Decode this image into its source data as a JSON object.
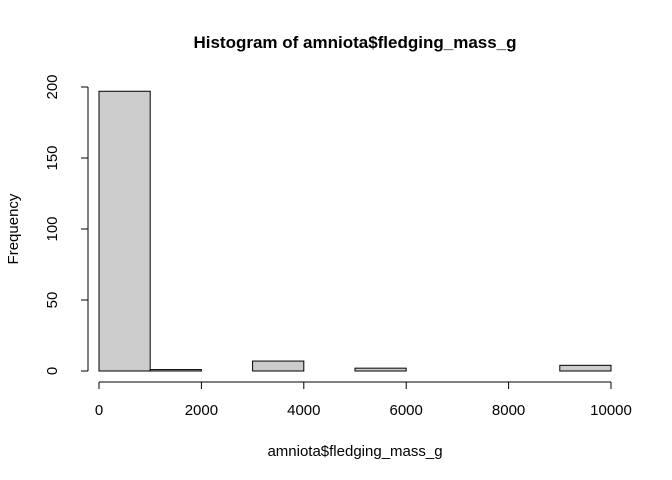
{
  "chart_data": {
    "type": "bar",
    "title": "Histogram of amniota$fledging_mass_g",
    "xlabel": "amniota$fledging_mass_g",
    "ylabel": "Frequency",
    "bins": [
      {
        "x0": 0,
        "x1": 1000,
        "count": 197
      },
      {
        "x0": 1000,
        "x1": 2000,
        "count": 1
      },
      {
        "x0": 2000,
        "x1": 3000,
        "count": 0
      },
      {
        "x0": 3000,
        "x1": 4000,
        "count": 7
      },
      {
        "x0": 4000,
        "x1": 5000,
        "count": 0
      },
      {
        "x0": 5000,
        "x1": 6000,
        "count": 2
      },
      {
        "x0": 6000,
        "x1": 7000,
        "count": 0
      },
      {
        "x0": 7000,
        "x1": 8000,
        "count": 0
      },
      {
        "x0": 8000,
        "x1": 9000,
        "count": 0
      },
      {
        "x0": 9000,
        "x1": 10000,
        "count": 4
      }
    ],
    "xlim": [
      0,
      10000
    ],
    "ylim": [
      0,
      200
    ],
    "x_ticks": [
      0,
      2000,
      4000,
      6000,
      8000,
      10000
    ],
    "y_ticks": [
      0,
      50,
      100,
      150,
      200
    ],
    "x_tick_labels": [
      "0",
      "2000",
      "4000",
      "6000",
      "8000",
      "10000"
    ],
    "y_tick_labels": [
      "0",
      "50",
      "100",
      "150",
      "200"
    ],
    "grid": false,
    "legend": "none",
    "bar_color": "#cccccc",
    "edge_color": "#000000"
  }
}
